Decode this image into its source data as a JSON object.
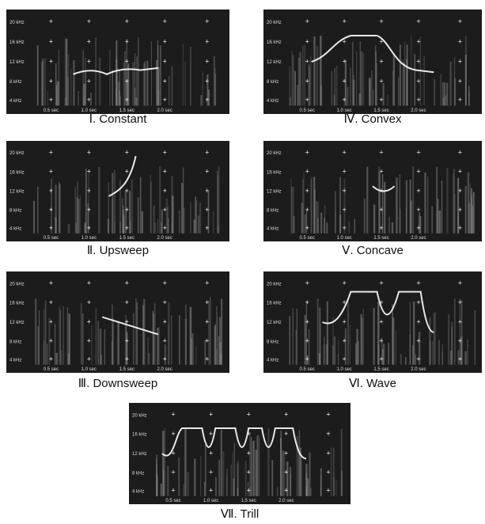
{
  "y_labels": [
    "20 kHz",
    "16 kHz",
    "12 kHz",
    "8 kHz",
    "4 kHz"
  ],
  "x_labels": [
    "0.5 sec",
    "1.0 sec",
    "1.5 sec",
    "2.0 sec"
  ],
  "panels": [
    {
      "caption": "Ⅰ. Constant"
    },
    {
      "caption": "Ⅳ. Convex"
    },
    {
      "caption": "Ⅱ. Upsweep"
    },
    {
      "caption": "Ⅴ. Concave"
    },
    {
      "caption": "Ⅲ. Downsweep"
    },
    {
      "caption": "Ⅵ. Wave"
    },
    {
      "caption": "Ⅶ. Trill"
    }
  ]
}
